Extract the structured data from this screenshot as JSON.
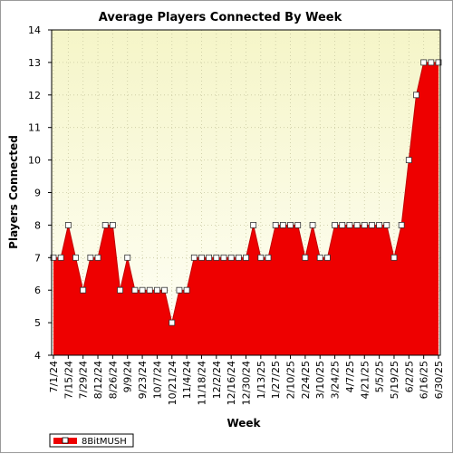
{
  "chart_data": {
    "type": "area",
    "title": "Average Players Connected By Week",
    "xlabel": "Week",
    "ylabel": "Players Connected",
    "ylim": [
      4,
      14
    ],
    "yticks": [
      4,
      5,
      6,
      7,
      8,
      9,
      10,
      11,
      12,
      13,
      14
    ],
    "grid": true,
    "legend_position": "bottom-left",
    "colors": {
      "fill": "#ee0000",
      "plot_bg_top": "#f5f5c8",
      "plot_bg_bottom": "#fffff8",
      "grid": "#c8c8a0",
      "marker_fill": "#ffffff"
    },
    "x_tick_labels": [
      "7/1/24",
      "7/15/24",
      "7/29/24",
      "8/12/24",
      "8/26/24",
      "9/9/24",
      "9/23/24",
      "10/7/24",
      "10/21/24",
      "11/4/24",
      "11/18/24",
      "12/2/24",
      "12/16/24",
      "12/30/24",
      "1/13/25",
      "1/27/25",
      "2/10/25",
      "2/24/25",
      "3/10/25",
      "3/24/25",
      "4/7/25",
      "4/21/25",
      "5/5/25",
      "5/19/25",
      "6/2/25",
      "6/16/25",
      "6/30/25"
    ],
    "series": [
      {
        "name": "8BitMUSH",
        "x": [
          "7/1/24",
          "7/8/24",
          "7/15/24",
          "7/22/24",
          "7/29/24",
          "8/5/24",
          "8/12/24",
          "8/19/24",
          "8/26/24",
          "9/2/24",
          "9/9/24",
          "9/16/24",
          "9/23/24",
          "9/30/24",
          "10/7/24",
          "10/14/24",
          "10/21/24",
          "10/28/24",
          "11/4/24",
          "11/11/24",
          "11/18/24",
          "11/25/24",
          "12/2/24",
          "12/9/24",
          "12/16/24",
          "12/23/24",
          "12/30/24",
          "1/6/25",
          "1/13/25",
          "1/20/25",
          "1/27/25",
          "2/3/25",
          "2/10/25",
          "2/17/25",
          "2/24/25",
          "3/3/25",
          "3/10/25",
          "3/17/25",
          "3/24/25",
          "3/31/25",
          "4/7/25",
          "4/14/25",
          "4/21/25",
          "4/28/25",
          "5/5/25",
          "5/12/25",
          "5/19/25",
          "5/26/25",
          "6/2/25",
          "6/9/25",
          "6/16/25",
          "6/23/25",
          "6/30/25"
        ],
        "values": [
          7,
          7,
          8,
          7,
          6,
          7,
          7,
          8,
          8,
          6,
          7,
          6,
          6,
          6,
          6,
          6,
          5,
          6,
          6,
          7,
          7,
          7,
          7,
          7,
          7,
          7,
          7,
          8,
          7,
          7,
          8,
          8,
          8,
          8,
          7,
          8,
          7,
          7,
          8,
          8,
          8,
          8,
          8,
          8,
          8,
          8,
          7,
          8,
          10,
          12,
          13,
          13,
          13
        ]
      }
    ]
  }
}
